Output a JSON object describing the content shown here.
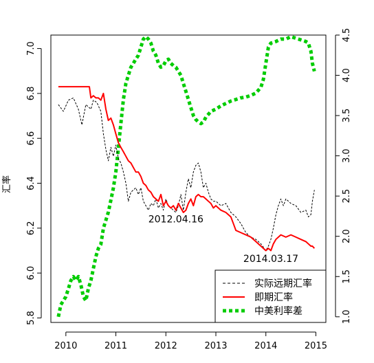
{
  "chart_data": {
    "type": "line",
    "title": "",
    "xlabel": "",
    "ylabel": "汇率",
    "ylabel_right": "",
    "xlim": [
      2009.7,
      2015.2
    ],
    "ylim": [
      5.78,
      7.06
    ],
    "ylim_right": [
      0.93,
      4.5
    ],
    "x_ticks": [
      "2010",
      "2011",
      "2012",
      "2013",
      "2014",
      "2015"
    ],
    "y_ticks": [
      "5.8",
      "6.0",
      "6.2",
      "6.4",
      "6.6",
      "6.8",
      "7.0"
    ],
    "y_ticks_right": [
      "1.0",
      "1.5",
      "2.0",
      "2.5",
      "3.0",
      "3.5",
      "4.0",
      "4.5"
    ],
    "grid": false,
    "legend_position": "bottom-right",
    "annotations": [
      {
        "text": "2012.04.16",
        "x": 2012.2,
        "y": 6.225
      },
      {
        "text": "2014.03.17",
        "x": 2014.1,
        "y": 6.05
      }
    ],
    "series": [
      {
        "name": "实际远期汇率",
        "axis": "left",
        "color": "#000000",
        "style": "dashed",
        "x": [
          2009.85,
          2009.95,
          2010.05,
          2010.15,
          2010.25,
          2010.32,
          2010.4,
          2010.5,
          2010.55,
          2010.62,
          2010.7,
          2010.75,
          2010.8,
          2010.85,
          2010.9,
          2010.95,
          2011.0,
          2011.05,
          2011.1,
          2011.15,
          2011.2,
          2011.25,
          2011.3,
          2011.35,
          2011.4,
          2011.45,
          2011.5,
          2011.55,
          2011.6,
          2011.65,
          2011.7,
          2011.75,
          2011.8,
          2011.85,
          2011.9,
          2011.95,
          2012.0,
          2012.05,
          2012.1,
          2012.15,
          2012.2,
          2012.25,
          2012.3,
          2012.35,
          2012.4,
          2012.45,
          2012.5,
          2012.55,
          2012.6,
          2012.65,
          2012.7,
          2012.75,
          2012.8,
          2012.85,
          2012.9,
          2012.95,
          2013.0,
          2013.1,
          2013.2,
          2013.3,
          2013.4,
          2013.5,
          2013.6,
          2013.7,
          2013.8,
          2013.9,
          2014.0,
          2014.05,
          2014.1,
          2014.15,
          2014.2,
          2014.25,
          2014.3,
          2014.35,
          2014.4,
          2014.5,
          2014.6,
          2014.7,
          2014.8,
          2014.85,
          2014.9,
          2014.93,
          2014.97
        ],
        "values": [
          6.75,
          6.72,
          6.77,
          6.78,
          6.73,
          6.66,
          6.75,
          6.73,
          6.77,
          6.76,
          6.72,
          6.62,
          6.55,
          6.5,
          6.56,
          6.52,
          6.57,
          6.51,
          6.49,
          6.45,
          6.4,
          6.32,
          6.36,
          6.37,
          6.38,
          6.35,
          6.38,
          6.32,
          6.3,
          6.28,
          6.31,
          6.3,
          6.33,
          6.29,
          6.31,
          6.28,
          6.33,
          6.3,
          6.29,
          6.28,
          6.27,
          6.3,
          6.35,
          6.28,
          6.36,
          6.42,
          6.38,
          6.45,
          6.48,
          6.49,
          6.45,
          6.38,
          6.4,
          6.36,
          6.33,
          6.32,
          6.32,
          6.3,
          6.31,
          6.27,
          6.25,
          6.22,
          6.18,
          6.16,
          6.15,
          6.13,
          6.1,
          6.12,
          6.15,
          6.2,
          6.26,
          6.3,
          6.33,
          6.3,
          6.33,
          6.31,
          6.3,
          6.27,
          6.28,
          6.25,
          6.26,
          6.32,
          6.37
        ]
      },
      {
        "name": "即期汇率",
        "axis": "left",
        "color": "#ff0000",
        "style": "solid",
        "x": [
          2009.85,
          2010.0,
          2010.2,
          2010.4,
          2010.47,
          2010.5,
          2010.55,
          2010.6,
          2010.65,
          2010.7,
          2010.75,
          2010.8,
          2010.85,
          2010.9,
          2010.95,
          2011.0,
          2011.05,
          2011.1,
          2011.15,
          2011.2,
          2011.25,
          2011.3,
          2011.35,
          2011.4,
          2011.45,
          2011.5,
          2011.55,
          2011.6,
          2011.65,
          2011.7,
          2011.75,
          2011.8,
          2011.85,
          2011.9,
          2011.95,
          2012.0,
          2012.05,
          2012.1,
          2012.15,
          2012.2,
          2012.25,
          2012.3,
          2012.35,
          2012.4,
          2012.45,
          2012.5,
          2012.55,
          2012.6,
          2012.65,
          2012.7,
          2012.75,
          2012.8,
          2012.85,
          2012.9,
          2012.95,
          2013.0,
          2013.1,
          2013.2,
          2013.3,
          2013.35,
          2013.4,
          2013.5,
          2013.6,
          2013.7,
          2013.8,
          2013.9,
          2014.0,
          2014.05,
          2014.1,
          2014.15,
          2014.2,
          2014.3,
          2014.4,
          2014.5,
          2014.6,
          2014.7,
          2014.8,
          2014.85,
          2014.9,
          2014.93,
          2014.97
        ],
        "values": [
          6.83,
          6.83,
          6.83,
          6.83,
          6.83,
          6.78,
          6.79,
          6.78,
          6.78,
          6.77,
          6.8,
          6.73,
          6.68,
          6.69,
          6.66,
          6.62,
          6.58,
          6.56,
          6.54,
          6.52,
          6.5,
          6.49,
          6.47,
          6.45,
          6.45,
          6.43,
          6.4,
          6.39,
          6.37,
          6.36,
          6.34,
          6.33,
          6.32,
          6.35,
          6.3,
          6.32,
          6.3,
          6.29,
          6.3,
          6.28,
          6.31,
          6.29,
          6.27,
          6.28,
          6.31,
          6.33,
          6.3,
          6.34,
          6.35,
          6.34,
          6.34,
          6.33,
          6.32,
          6.31,
          6.29,
          6.3,
          6.28,
          6.27,
          6.25,
          6.22,
          6.19,
          6.18,
          6.17,
          6.16,
          6.14,
          6.12,
          6.1,
          6.11,
          6.1,
          6.13,
          6.15,
          6.17,
          6.16,
          6.17,
          6.16,
          6.15,
          6.14,
          6.13,
          6.12,
          6.12,
          6.11
        ]
      },
      {
        "name": "中美利率差",
        "axis": "right",
        "color": "#00cc00",
        "style": "dotted",
        "x": [
          2009.85,
          2009.9,
          2009.95,
          2010.0,
          2010.05,
          2010.1,
          2010.15,
          2010.2,
          2010.25,
          2010.3,
          2010.35,
          2010.4,
          2010.45,
          2010.5,
          2010.55,
          2010.6,
          2010.65,
          2010.7,
          2010.75,
          2010.8,
          2010.85,
          2010.9,
          2010.95,
          2011.0,
          2011.05,
          2011.1,
          2011.15,
          2011.2,
          2011.25,
          2011.3,
          2011.35,
          2011.4,
          2011.45,
          2011.5,
          2011.55,
          2011.6,
          2011.65,
          2011.7,
          2011.75,
          2011.8,
          2011.85,
          2011.9,
          2011.95,
          2012.0,
          2012.05,
          2012.1,
          2012.15,
          2012.2,
          2012.25,
          2012.3,
          2012.35,
          2012.4,
          2012.45,
          2012.5,
          2012.55,
          2012.6,
          2012.65,
          2012.7,
          2012.75,
          2012.8,
          2012.9,
          2013.0,
          2013.1,
          2013.2,
          2013.3,
          2013.4,
          2013.5,
          2013.6,
          2013.7,
          2013.8,
          2013.9,
          2013.95,
          2014.0,
          2014.05,
          2014.1,
          2014.2,
          2014.3,
          2014.4,
          2014.5,
          2014.6,
          2014.7,
          2014.8,
          2014.85,
          2014.9,
          2014.93,
          2014.97
        ],
        "values": [
          1.0,
          1.15,
          1.2,
          1.25,
          1.35,
          1.45,
          1.5,
          1.45,
          1.5,
          1.4,
          1.25,
          1.2,
          1.35,
          1.45,
          1.6,
          1.75,
          1.85,
          1.9,
          2.1,
          2.2,
          2.3,
          2.45,
          2.6,
          2.8,
          3.1,
          3.4,
          3.7,
          3.9,
          4.0,
          4.1,
          4.15,
          4.2,
          4.25,
          4.35,
          4.45,
          4.48,
          4.45,
          4.4,
          4.3,
          4.25,
          4.15,
          4.1,
          4.12,
          4.18,
          4.2,
          4.15,
          4.12,
          4.1,
          4.05,
          4.0,
          3.9,
          3.8,
          3.7,
          3.6,
          3.5,
          3.45,
          3.42,
          3.4,
          3.42,
          3.48,
          3.55,
          3.58,
          3.62,
          3.65,
          3.68,
          3.7,
          3.72,
          3.73,
          3.75,
          3.78,
          3.85,
          3.95,
          4.15,
          4.35,
          4.4,
          4.42,
          4.45,
          4.45,
          4.48,
          4.46,
          4.44,
          4.42,
          4.4,
          4.3,
          4.15,
          4.05
        ]
      }
    ]
  }
}
